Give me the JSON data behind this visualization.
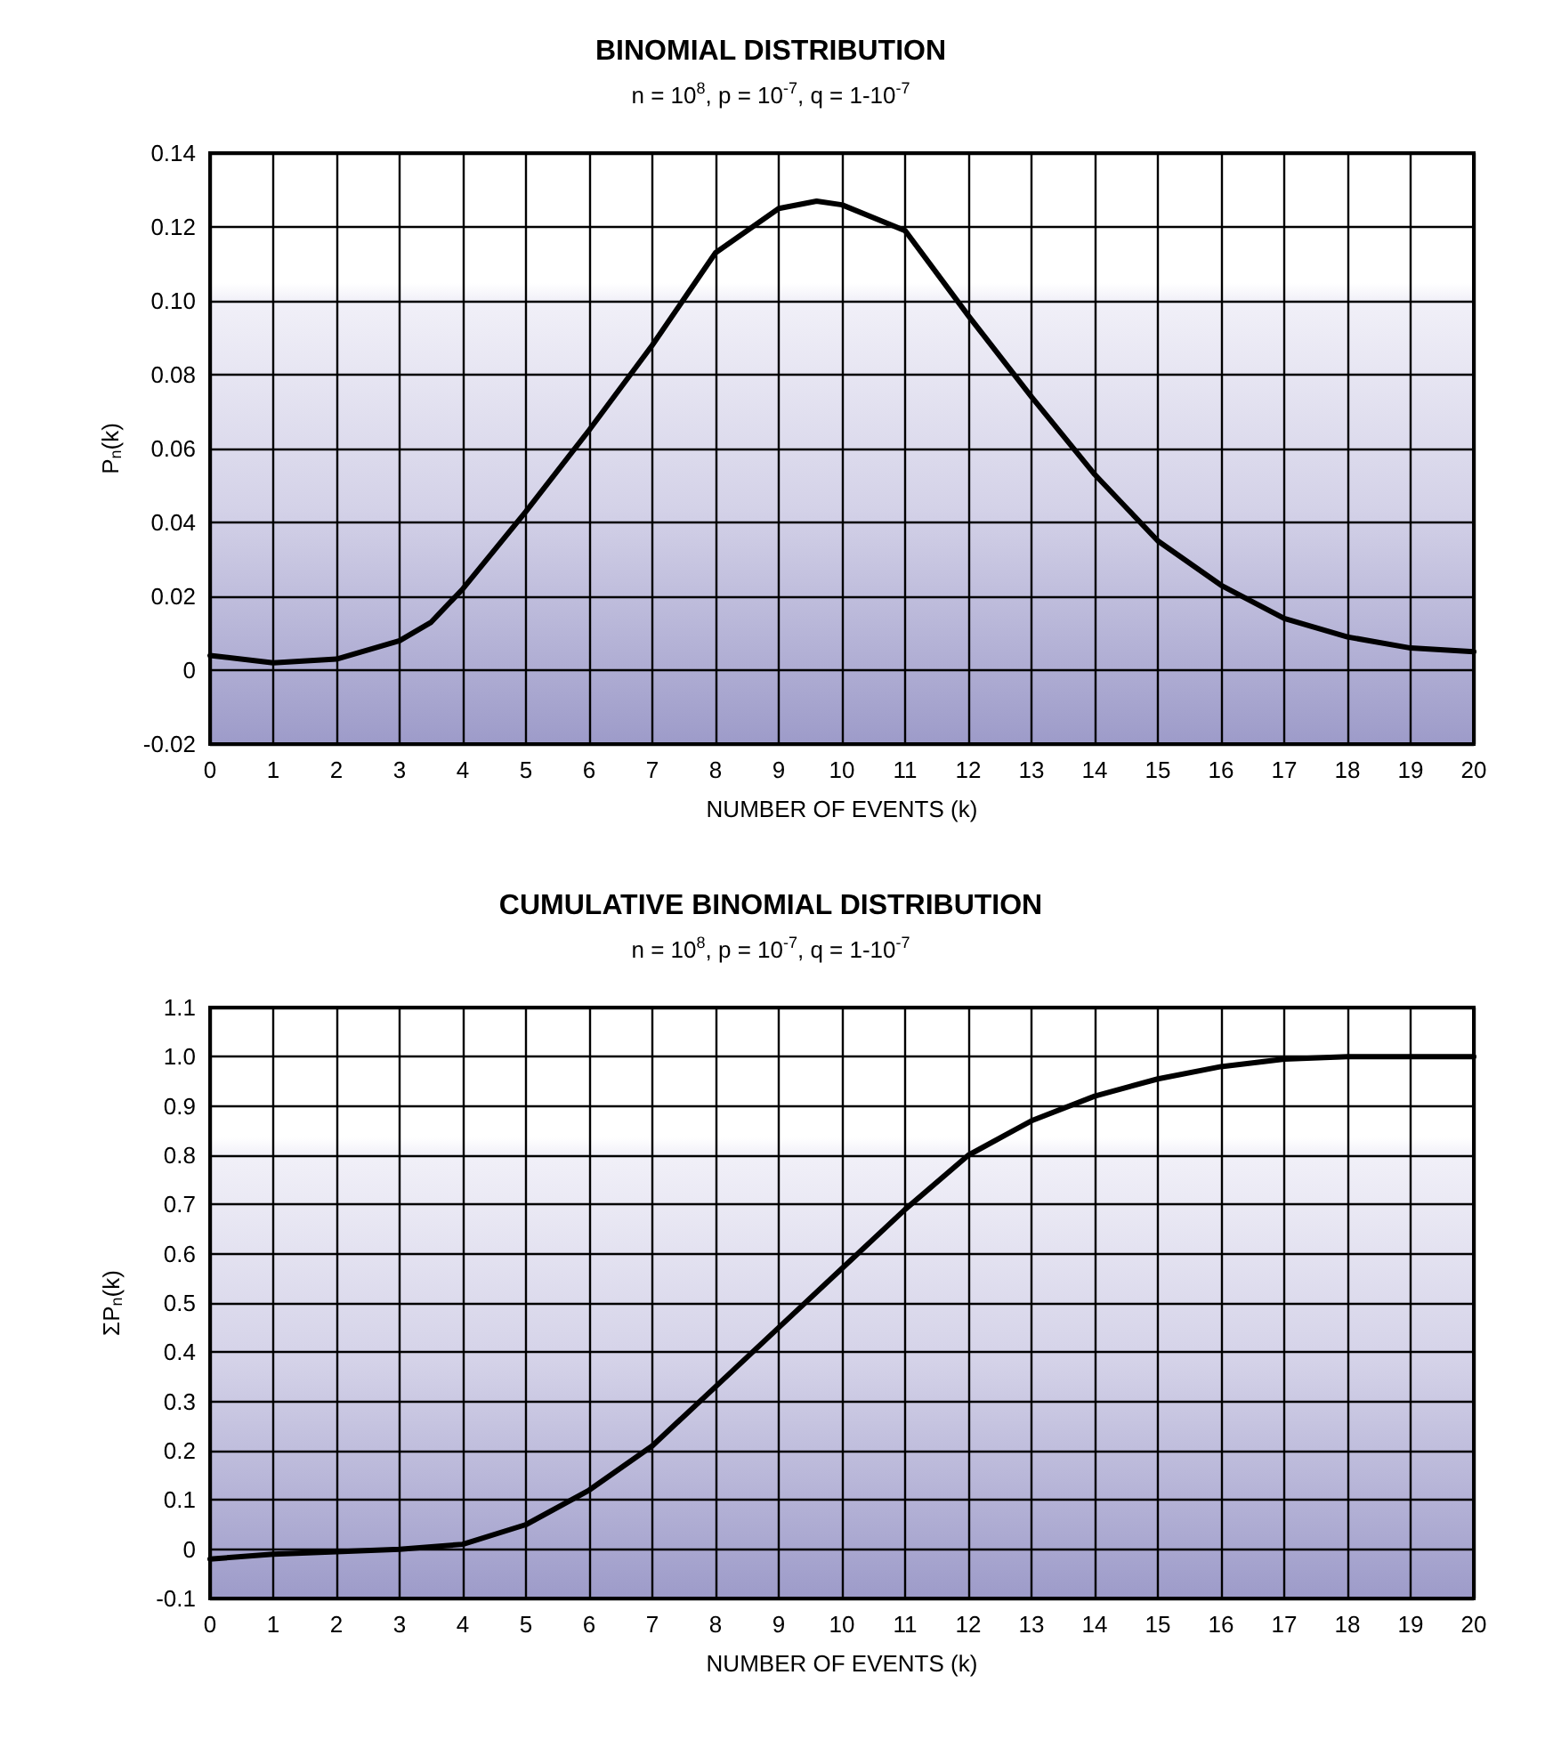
{
  "chart_data": [
    {
      "type": "line",
      "title": "BINOMIAL DISTRIBUTION",
      "subtitle": "n = 10$^{8}$, p = 10$^{-7}$, q = 1-10$^{-7}$",
      "xlabel": "NUMBER OF EVENTS (k)",
      "ylabel": "P$_{n}$(k)",
      "x": [
        0,
        1,
        2,
        3,
        3.5,
        4,
        5,
        6,
        7,
        8,
        9,
        9.6,
        10,
        11,
        12,
        13,
        14,
        15,
        16,
        17,
        18,
        19,
        20
      ],
      "series": [
        {
          "color": "#000000",
          "values": [
            0.004,
            0.002,
            0.003,
            0.008,
            0.013,
            0.022,
            0.043,
            0.065,
            0.088,
            0.113,
            0.125,
            0.127,
            0.126,
            0.119,
            0.096,
            0.074,
            0.053,
            0.035,
            0.023,
            0.014,
            0.009,
            0.006,
            0.005
          ]
        }
      ],
      "xlim": [
        0,
        20
      ],
      "xticks": [
        0,
        1,
        2,
        3,
        4,
        5,
        6,
        7,
        8,
        9,
        10,
        11,
        12,
        13,
        14,
        15,
        16,
        17,
        18,
        19,
        20
      ],
      "ylim": [
        -0.02,
        0.14
      ],
      "yticks": [
        -0.02,
        0,
        0.02,
        0.04,
        0.06,
        0.08,
        {
          "value": 0.1,
          "label": "0.10"
        },
        0.12,
        0.14
      ],
      "grid": true,
      "marker": "none",
      "line_style": "solid"
    },
    {
      "type": "line",
      "title": "CUMULATIVE BINOMIAL DISTRIBUTION",
      "subtitle": "n = 10$^{8}$, p = 10$^{-7}$, q = 1-10$^{-7}$",
      "xlabel": "NUMBER OF EVENTS (k)",
      "ylabel": "ΣP$_{n}$(k)",
      "x": [
        0,
        1,
        2,
        3,
        4,
        5,
        6,
        7,
        8,
        9,
        10,
        11,
        12,
        13,
        14,
        15,
        16,
        17,
        18,
        19,
        20
      ],
      "series": [
        {
          "color": "#000000",
          "values": [
            -0.02,
            -0.01,
            -0.005,
            0,
            0.01,
            0.05,
            0.12,
            0.21,
            0.33,
            0.45,
            0.57,
            0.69,
            0.8,
            0.87,
            0.92,
            0.955,
            0.98,
            0.995,
            1.0,
            1.0,
            1.0
          ]
        }
      ],
      "xlim": [
        0,
        20
      ],
      "xticks": [
        0,
        1,
        2,
        3,
        4,
        5,
        6,
        7,
        8,
        9,
        10,
        11,
        12,
        13,
        14,
        15,
        16,
        17,
        18,
        19,
        20
      ],
      "ylim": [
        -0.1,
        1.1
      ],
      "yticks": [
        -0.1,
        0,
        0.1,
        0.2,
        0.3,
        0.4,
        0.5,
        0.6,
        0.7,
        0.8,
        0.9,
        {
          "value": 1,
          "label": "1.0"
        },
        1.1
      ],
      "grid": true,
      "marker": "none",
      "line_style": "solid"
    }
  ]
}
